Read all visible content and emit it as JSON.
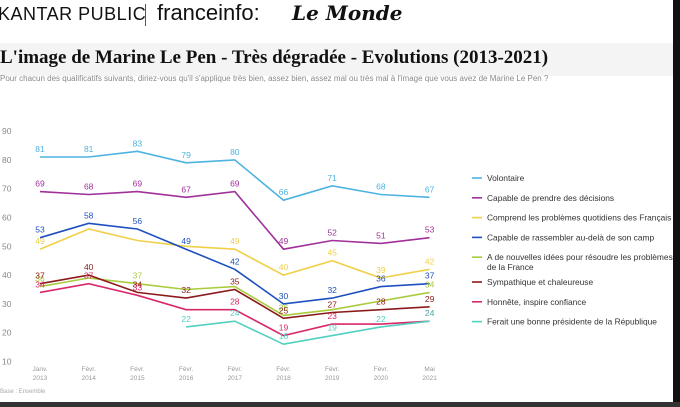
{
  "header": {
    "kantar": "KANTAR PUBLIC",
    "franceinfo": "franceinfo:",
    "lemonde": "Le Monde"
  },
  "title": "L'image de Marine Le Pen - Très dégradée - Evolutions (2013-2021)",
  "subtitle": "Pour chacun des qualificatifs suivants, diriez-vous qu'il s'applique très bien, assez bien, assez mal ou très mal à l'image que vous avez de Marine Le Pen ?",
  "source": "Base : Ensemble",
  "chart_data": {
    "type": "line",
    "x": [
      "Janv. 2013",
      "Févr. 2014",
      "Févr. 2015",
      "Févr. 2016",
      "Févr. 2017",
      "Févr. 2018",
      "Févr. 2019",
      "Févr. 2020",
      "Mai 2021"
    ],
    "yticks": [
      10,
      20,
      30,
      40,
      50,
      60,
      70,
      80,
      90
    ],
    "ylim": [
      10,
      90
    ],
    "grid": false,
    "legend_position": "right",
    "series": [
      {
        "name": "Volontaire",
        "color": "#4db3e0",
        "values": [
          81,
          81,
          83,
          79,
          80,
          66,
          71,
          68,
          67
        ],
        "labels": [
          "81",
          "81",
          "83",
          "79",
          "80",
          "66",
          "71",
          "68",
          "67"
        ]
      },
      {
        "name": "Capable de prendre des décisions",
        "color": "#a0309a",
        "values": [
          69,
          68,
          69,
          67,
          69,
          49,
          52,
          51,
          53
        ],
        "labels": [
          "69",
          "68",
          "69",
          "67",
          "69",
          "49",
          "52",
          "51",
          "53"
        ]
      },
      {
        "name": "Comprend les problèmes quotidiens des Français",
        "color": "#f0d048",
        "values": [
          49,
          56,
          52,
          50,
          49,
          40,
          45,
          39,
          42
        ],
        "labels": [
          "49",
          "",
          "",
          "",
          "49",
          "40",
          "45",
          "39",
          "42"
        ]
      },
      {
        "name": "Capable de rassembler au-delà de son camp",
        "color": "#1e4fc0",
        "values": [
          53,
          58,
          56,
          49,
          42,
          30,
          32,
          36,
          37
        ],
        "labels": [
          "53",
          "58",
          "56",
          "49",
          "42",
          "30",
          "32",
          "36",
          "37"
        ]
      },
      {
        "name": "A de nouvelles idées pour résoudre les problèmes de la France",
        "color": "#a8cc3c",
        "values": [
          36,
          39,
          37,
          35,
          36,
          26,
          28,
          31,
          34
        ],
        "labels": [
          "36",
          "",
          "37",
          "",
          "",
          "26",
          "",
          "",
          "34"
        ]
      },
      {
        "name": "Sympathique et chaleureuse",
        "color": "#8b1a1a",
        "values": [
          37,
          40,
          34,
          32,
          35,
          25,
          27,
          28,
          29
        ],
        "labels": [
          "37",
          "40",
          "34",
          "32",
          "35",
          "25",
          "27",
          "28",
          "29"
        ]
      },
      {
        "name": "Honnête, inspire confiance",
        "color": "#d8286a",
        "values": [
          34,
          37,
          33,
          28,
          28,
          19,
          23,
          23,
          24
        ],
        "labels": [
          "34",
          "37",
          "33",
          "",
          "28",
          "19",
          "23",
          "",
          "24"
        ]
      },
      {
        "name": "Ferait une bonne présidente de la République",
        "color": "#52d0c0",
        "values": [
          null,
          null,
          null,
          22,
          24,
          16,
          19,
          22,
          24
        ],
        "labels": [
          "",
          "",
          "",
          "22",
          "24",
          "16",
          "19",
          "22",
          "24"
        ]
      }
    ]
  }
}
